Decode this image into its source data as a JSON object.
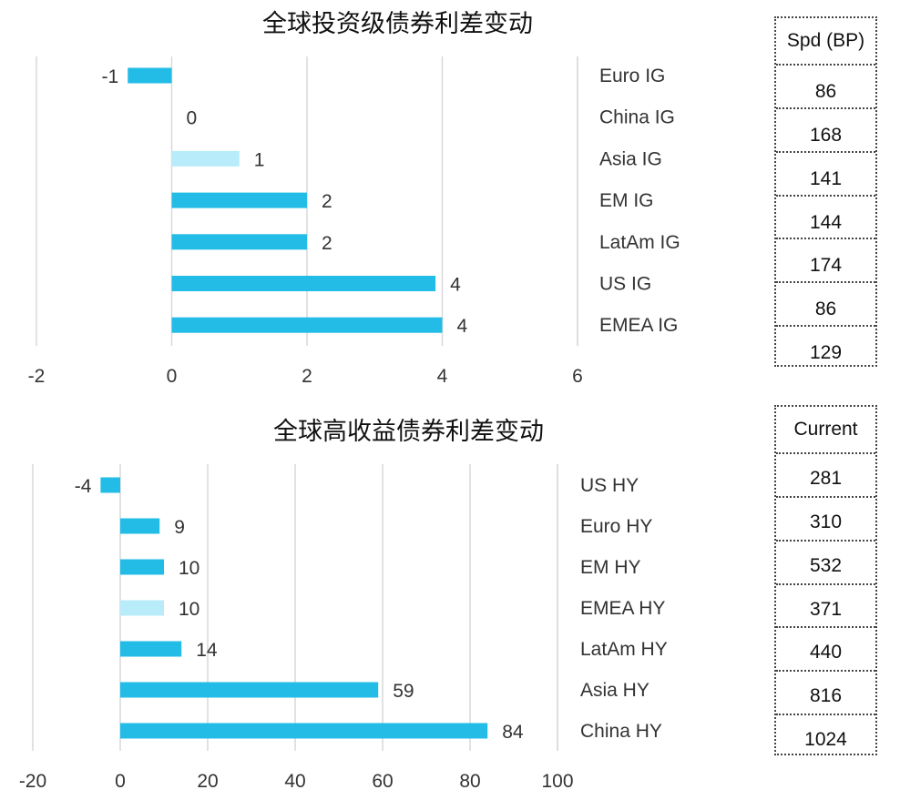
{
  "charts": {
    "ig": {
      "title": "全球投资级债券利差变动",
      "table_header": "Spd (BP)",
      "chart_data": {
        "type": "bar",
        "orientation": "horizontal",
        "title": "全球投资级债券利差变动",
        "categories": [
          "Euro IG",
          "China IG",
          "Asia IG",
          "EM IG",
          "LatAm IG",
          "US IG",
          "EMEA IG"
        ],
        "values": [
          -1,
          0,
          1,
          2,
          2,
          4,
          4
        ],
        "bar_lengths": [
          -0.65,
          0,
          1,
          2,
          2,
          3.9,
          4
        ],
        "highlight": [
          false,
          false,
          true,
          false,
          false,
          false,
          false
        ],
        "xlim": [
          -2,
          6
        ],
        "xticks": [
          "-2",
          "0",
          "2",
          "4",
          "6"
        ],
        "grid": "vertical",
        "table": {
          "header": "Spd (BP)",
          "values": [
            "86",
            "168",
            "141",
            "144",
            "174",
            "86",
            "129"
          ]
        }
      }
    },
    "hy": {
      "title": "全球高收益债券利差变动",
      "table_header": "Current",
      "chart_data": {
        "type": "bar",
        "orientation": "horizontal",
        "title": "全球高收益债券利差变动",
        "categories": [
          "US HY",
          "Euro HY",
          "EM HY",
          "EMEA HY",
          "LatAm HY",
          "Asia HY",
          "China HY"
        ],
        "values": [
          -4,
          9,
          10,
          10,
          14,
          59,
          84
        ],
        "bar_lengths": [
          -4.5,
          9,
          10,
          10,
          14,
          59,
          84
        ],
        "highlight": [
          false,
          false,
          false,
          true,
          false,
          false,
          false
        ],
        "xlim": [
          -20,
          100
        ],
        "xticks": [
          "-20",
          "0",
          "20",
          "40",
          "60",
          "80",
          "100"
        ],
        "grid": "vertical",
        "table": {
          "header": "Current",
          "values": [
            "281",
            "310",
            "532",
            "371",
            "440",
            "816",
            "1024"
          ]
        }
      }
    }
  },
  "colors": {
    "bar": "#22BCE6",
    "highlight": "#B8ECFA",
    "grid": "#D9D9D9",
    "text": "#333333"
  }
}
